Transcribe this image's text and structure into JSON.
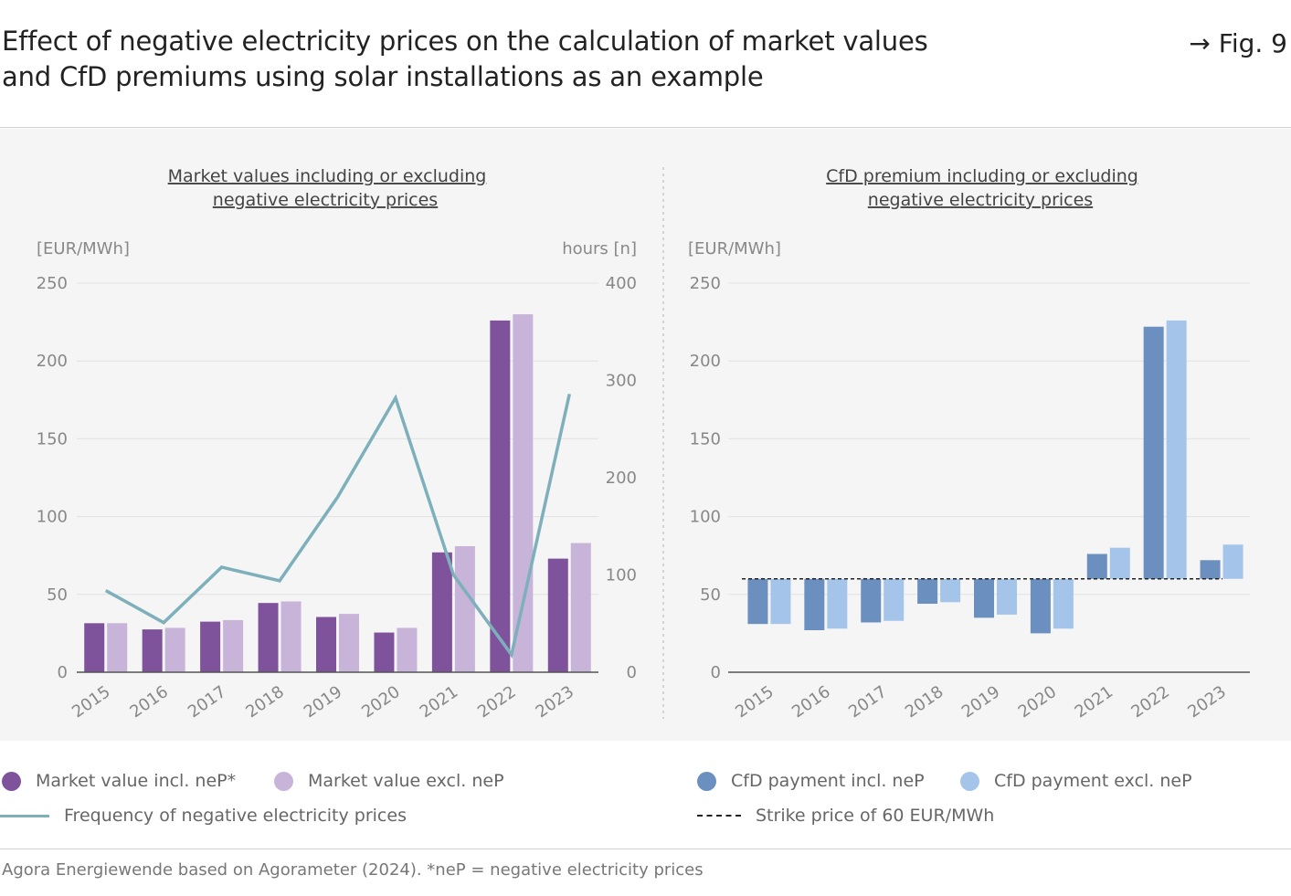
{
  "header": {
    "title_line1": "Effect of negative electricity prices on the calculation of market values",
    "title_line2": "and CfD premiums using solar installations as an example",
    "fig_ref": "→ Fig. 9"
  },
  "colors": {
    "market_incl": "#7e539c",
    "market_excl": "#c8b4d8",
    "frequency_line": "#7db0bb",
    "cfd_incl": "#6b8fbf",
    "cfd_excl": "#a4c5e9",
    "strike": "#222222"
  },
  "chart_data": [
    {
      "type": "bar",
      "title_line1": "Market values including or excluding",
      "title_line2": "negative electricity prices",
      "ylabel": "[EUR/MWh]",
      "y2label": "hours [n]",
      "ylim": [
        0,
        250
      ],
      "y2lim": [
        0,
        400
      ],
      "yticks": [
        0,
        50,
        100,
        150,
        200,
        250
      ],
      "y2ticks": [
        0,
        100,
        200,
        300,
        400
      ],
      "grid": true,
      "categories": [
        "2015",
        "2016",
        "2017",
        "2018",
        "2019",
        "2020",
        "2021",
        "2022",
        "2023"
      ],
      "series": [
        {
          "name": "Market value incl. neP*",
          "kind": "bar",
          "axis": "left",
          "values": [
            31.5,
            27.5,
            32.5,
            44.5,
            35.5,
            25.5,
            77,
            226,
            73
          ]
        },
        {
          "name": "Market value excl. neP",
          "kind": "bar",
          "axis": "left",
          "values": [
            31.5,
            28.5,
            33.5,
            45.5,
            37.5,
            28.5,
            81,
            230,
            83
          ]
        },
        {
          "name": "Frequency of negative electricity prices",
          "kind": "line",
          "axis": "right",
          "values": [
            84,
            51,
            108,
            94,
            180,
            282,
            100,
            18,
            286
          ]
        }
      ]
    },
    {
      "type": "bar",
      "title_line1": "CfD premium including or excluding",
      "title_line2": "negative electricity prices",
      "ylabel": "[EUR/MWh]",
      "ylim": [
        0,
        250
      ],
      "yticks": [
        0,
        50,
        100,
        150,
        200,
        250
      ],
      "grid": true,
      "baseline": 60,
      "categories": [
        "2015",
        "2016",
        "2017",
        "2018",
        "2019",
        "2020",
        "2021",
        "2022",
        "2023"
      ],
      "series": [
        {
          "name": "CfD payment incl. neP",
          "values": [
            31,
            27,
            32,
            44,
            35,
            25,
            76,
            222,
            72
          ]
        },
        {
          "name": "CfD payment excl. neP",
          "values": [
            31,
            28,
            33,
            45,
            37,
            28,
            80,
            226,
            82
          ]
        }
      ],
      "strike_price": {
        "name": "Strike price of 60 EUR/MWh",
        "value": 60
      }
    }
  ],
  "source": "Agora Energiewende based on Agorameter (2024). *neP = negative electricity prices"
}
